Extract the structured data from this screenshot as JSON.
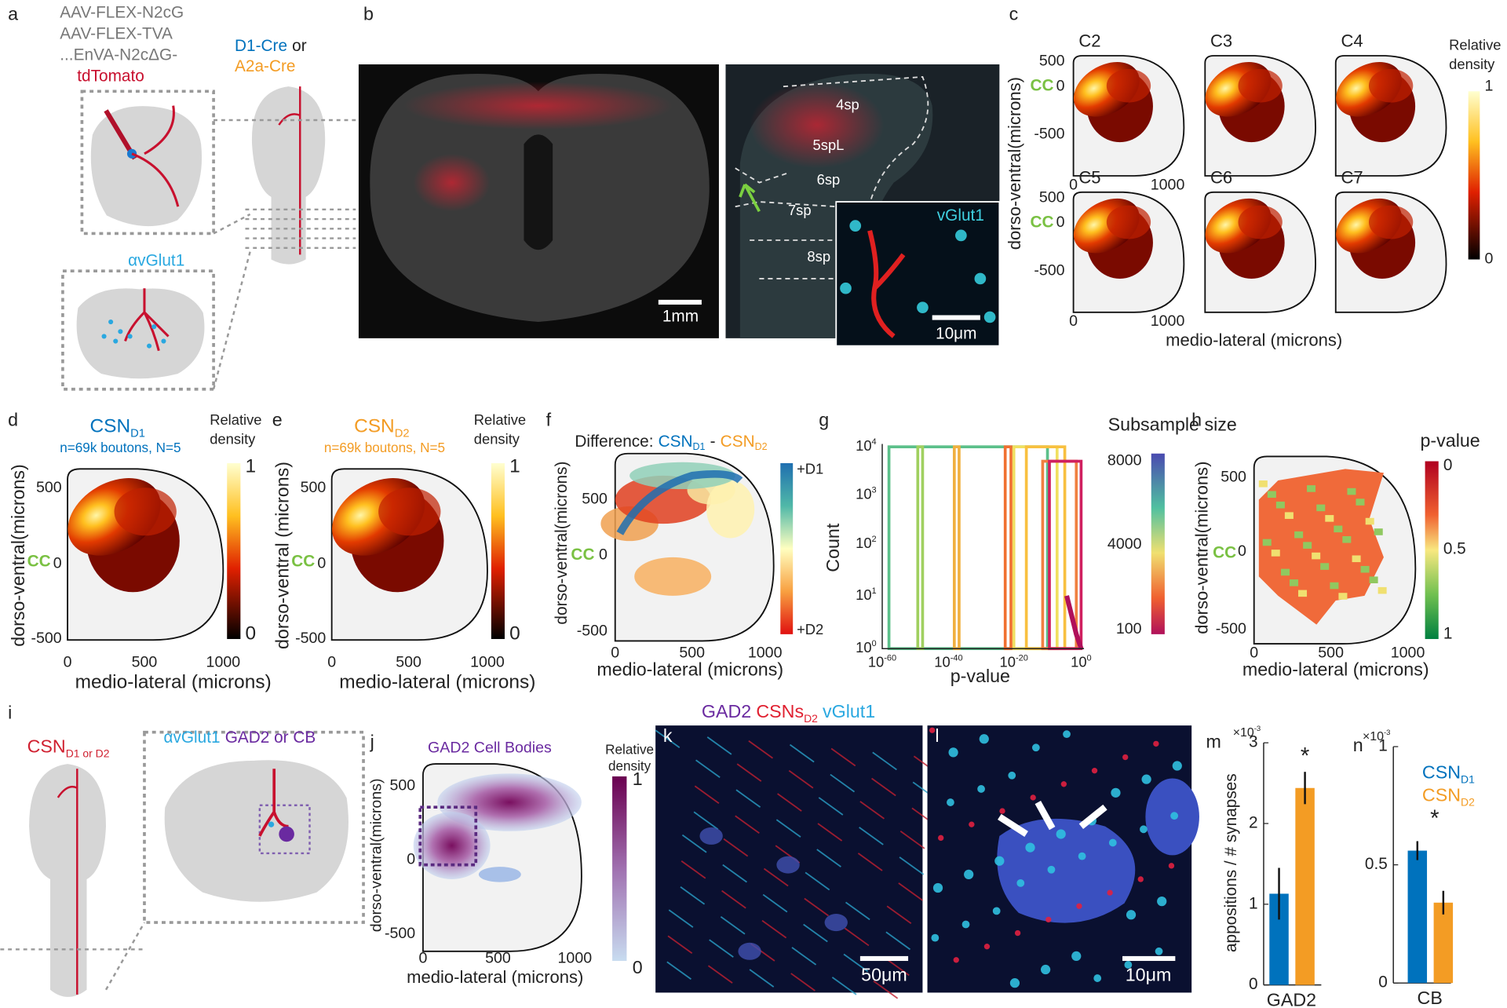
{
  "a": {
    "letter": "a",
    "vectors": [
      "AAV-FLEX-N2cG",
      "AAV-FLEX-TVA",
      "...EnVA-N2cΔG-",
      "tdTomato"
    ],
    "cre1": "D1-Cre",
    "or": "or",
    "cre2": "A2a-Cre",
    "stain": "αvGlut1"
  },
  "b": {
    "letter": "b",
    "scale_left": "1mm",
    "layers": [
      "4sp",
      "5spL",
      "6sp",
      "7sp",
      "8sp"
    ],
    "inset_label": "vGlut1",
    "scale_inset": "10μm"
  },
  "c": {
    "letter": "c",
    "segments": [
      "C2",
      "C3",
      "C4",
      "C5",
      "C6",
      "C7"
    ],
    "cc": "CC",
    "yticks": [
      "500",
      "0",
      "-500"
    ],
    "xticks": [
      "0",
      "1000"
    ],
    "ylabel": "dorso-ventral(microns)",
    "xlabel": "medio-lateral (microns)",
    "colorbar": {
      "title": [
        "Relative",
        "density"
      ],
      "ticks": [
        "1",
        "0"
      ]
    }
  },
  "d": {
    "letter": "d",
    "title": {
      "text": "CSN",
      "sub": "D1"
    },
    "subtitle": "n=69k boutons, N=5",
    "cc": "CC",
    "yticks": [
      "500",
      "0",
      "-500"
    ],
    "xticks": [
      "0",
      "500",
      "1000"
    ],
    "ylabel": "dorso-ventral(microns)",
    "xlabel": "medio-lateral (microns)",
    "colorbar": {
      "title": [
        "Relative",
        "density"
      ],
      "ticks": [
        "1",
        "0"
      ]
    }
  },
  "e": {
    "letter": "e",
    "title": {
      "text": "CSN",
      "sub": "D2"
    },
    "subtitle": "n=69k boutons, N=5",
    "cc": "CC",
    "yticks": [
      "500",
      "0",
      "-500"
    ],
    "xticks": [
      "0",
      "500",
      "1000"
    ],
    "ylabel": "dorso-ventral (microns)",
    "xlabel": "medio-lateral (microns)",
    "colorbar": {
      "title": [
        "Relative",
        "density"
      ],
      "ticks": [
        "1",
        "0"
      ]
    }
  },
  "f": {
    "letter": "f",
    "title": {
      "prefix": "Difference:",
      "a": "CSN",
      "a_sub": "D1",
      "minus": "-",
      "b": "CSN",
      "b_sub": "D2"
    },
    "cc": "CC",
    "yticks": [
      "500",
      "0",
      "-500"
    ],
    "xticks": [
      "0",
      "500",
      "1000"
    ],
    "ylabel": "dorso-ventral(microns)",
    "xlabel": "medio-lateral (microns)",
    "colorbar": {
      "ticks": [
        "+D1",
        "+D2"
      ]
    }
  },
  "g": {
    "letter": "g",
    "ylabel": "Count",
    "xlabel": "p-value",
    "yticks": [
      {
        "base": "10",
        "exp": "4"
      },
      {
        "base": "10",
        "exp": "3"
      },
      {
        "base": "10",
        "exp": "2"
      },
      {
        "base": "10",
        "exp": "1"
      },
      {
        "base": "10",
        "exp": "0"
      }
    ],
    "xticks": [
      {
        "base": "10",
        "exp": "-60"
      },
      {
        "base": "10",
        "exp": "-40"
      },
      {
        "base": "10",
        "exp": "-20"
      },
      {
        "base": "10",
        "exp": "0"
      }
    ],
    "colorbar": {
      "title": "Subsample size",
      "ticks": [
        "8000",
        "4000",
        "100"
      ]
    }
  },
  "h": {
    "letter": "h",
    "cc": "CC",
    "yticks": [
      "500",
      "0",
      "-500"
    ],
    "xticks": [
      "0",
      "500",
      "1000"
    ],
    "ylabel": "dorso-ventral(microns)",
    "xlabel": "medio-lateral (microns)",
    "colorbar": {
      "title": "p-value",
      "ticks": [
        "0",
        "0.5",
        "1"
      ]
    }
  },
  "i": {
    "letter": "i",
    "title": {
      "text": "CSN",
      "sub": "D1 or D2"
    },
    "stain1": "αvGlut1",
    "stain2": "GAD2 or CB"
  },
  "j": {
    "letter": "j",
    "title": "GAD2 Cell Bodies",
    "yticks": [
      "500",
      "0",
      "-500"
    ],
    "xticks": [
      "0",
      "500",
      "1000"
    ],
    "ylabel": "dorso-ventral(microns)",
    "xlabel": "medio-lateral (microns)",
    "colorbar": {
      "title": [
        "Relative",
        "density"
      ],
      "ticks": [
        "1",
        "0"
      ]
    }
  },
  "k": {
    "letter": "k",
    "scale": "50μm",
    "title": {
      "s1": "GAD2",
      "s2": "CSNs",
      "s2_sub": "D2",
      "s3": "vGlut1"
    }
  },
  "l": {
    "letter": "l",
    "scale": "10μm"
  },
  "m": {
    "letter": "m",
    "type": "bar",
    "category": "GAD2",
    "ylabel": "appositions / # synapses",
    "multiplier": {
      "base": "×10",
      "exp": "-3"
    },
    "significance": "*",
    "colors": [
      "#0072bd",
      "#f39c24"
    ],
    "values": [
      1.13,
      2.44
    ],
    "errors": [
      0.32,
      0.2
    ],
    "ylim": [
      0,
      3
    ],
    "yticks": [
      0,
      1,
      2,
      3
    ]
  },
  "n": {
    "letter": "n",
    "type": "bar",
    "category": "CB",
    "multiplier": {
      "base": "×10",
      "exp": "-3"
    },
    "significance": "*",
    "legend": [
      {
        "name": "CSN",
        "sub": "D1"
      },
      {
        "name": "CSN",
        "sub": "D2"
      }
    ],
    "colors": [
      "#0072bd",
      "#f39c24"
    ],
    "values": [
      0.56,
      0.34
    ],
    "errors": [
      0.04,
      0.05
    ],
    "ylim": [
      0,
      1
    ],
    "yticks": [
      0,
      0.5,
      1
    ]
  }
}
